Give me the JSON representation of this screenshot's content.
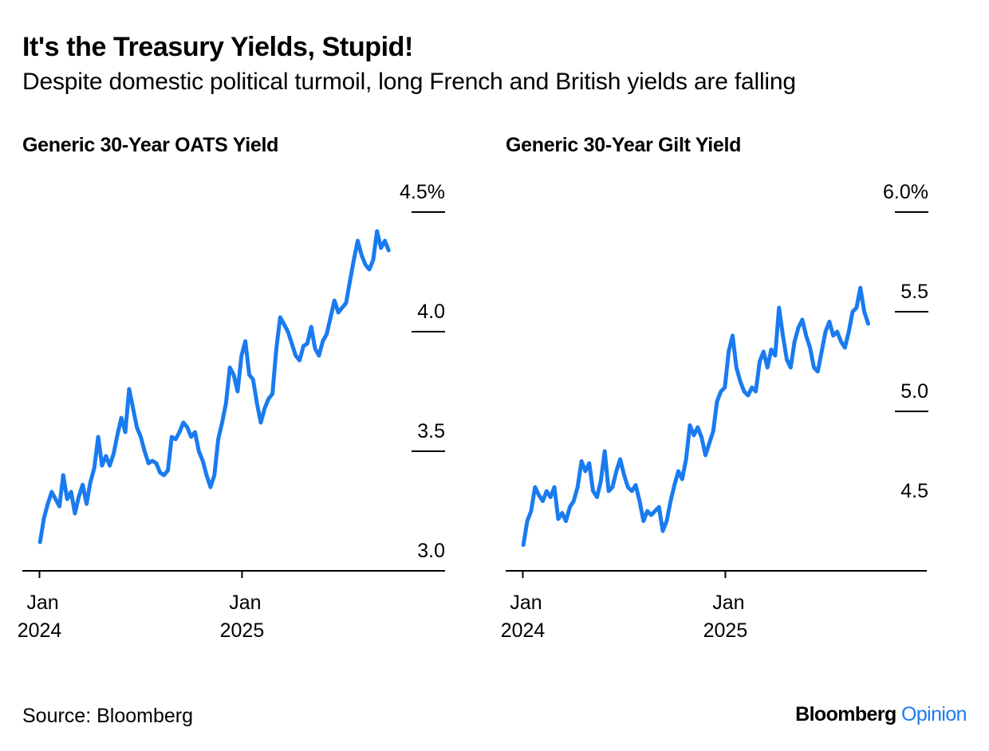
{
  "header": {
    "title": "It's the Treasury Yields, Stupid!",
    "subtitle": "Despite domestic political turmoil, long French and British yields are falling"
  },
  "footer": {
    "source": "Source: Bloomberg",
    "brand_main": "Bloomberg",
    "brand_accent": "Opinion"
  },
  "colors": {
    "line": "#1a7bf0",
    "axis": "#000000",
    "brand_accent": "#1a7bf0"
  },
  "chart_data": [
    {
      "type": "line",
      "title": "Generic 30-Year OATS Yield",
      "xlabel": "",
      "ylabel": "",
      "ylim": [
        3.0,
        4.5
      ],
      "yticks": [
        {
          "value": 3.0,
          "label": "3.0"
        },
        {
          "value": 3.5,
          "label": "3.5"
        },
        {
          "value": 4.0,
          "label": "4.0"
        },
        {
          "value": 4.5,
          "label": "4.5%"
        }
      ],
      "xlim": [
        "2023-12-01",
        "2025-12-31"
      ],
      "xticks": [
        {
          "date": "2024-01-01",
          "line1": "Jan",
          "line2": "2024"
        },
        {
          "date": "2025-01-01",
          "line1": "Jan",
          "line2": "2025"
        }
      ],
      "grid": false,
      "series": [
        {
          "points": [
            [
              "2024-01-02",
              3.12
            ],
            [
              "2024-01-09",
              3.22
            ],
            [
              "2024-01-16",
              3.28
            ],
            [
              "2024-01-23",
              3.33
            ],
            [
              "2024-01-30",
              3.3
            ],
            [
              "2024-02-06",
              3.27
            ],
            [
              "2024-02-13",
              3.4
            ],
            [
              "2024-02-20",
              3.3
            ],
            [
              "2024-02-27",
              3.33
            ],
            [
              "2024-03-05",
              3.24
            ],
            [
              "2024-03-12",
              3.31
            ],
            [
              "2024-03-19",
              3.36
            ],
            [
              "2024-03-26",
              3.28
            ],
            [
              "2024-04-02",
              3.37
            ],
            [
              "2024-04-09",
              3.43
            ],
            [
              "2024-04-16",
              3.56
            ],
            [
              "2024-04-23",
              3.44
            ],
            [
              "2024-04-30",
              3.48
            ],
            [
              "2024-05-07",
              3.44
            ],
            [
              "2024-05-14",
              3.49
            ],
            [
              "2024-05-21",
              3.57
            ],
            [
              "2024-05-28",
              3.64
            ],
            [
              "2024-06-04",
              3.58
            ],
            [
              "2024-06-11",
              3.76
            ],
            [
              "2024-06-18",
              3.68
            ],
            [
              "2024-06-25",
              3.6
            ],
            [
              "2024-07-02",
              3.56
            ],
            [
              "2024-07-09",
              3.5
            ],
            [
              "2024-07-16",
              3.45
            ],
            [
              "2024-07-23",
              3.46
            ],
            [
              "2024-07-30",
              3.45
            ],
            [
              "2024-08-06",
              3.41
            ],
            [
              "2024-08-13",
              3.4
            ],
            [
              "2024-08-20",
              3.42
            ],
            [
              "2024-08-27",
              3.56
            ],
            [
              "2024-09-03",
              3.55
            ],
            [
              "2024-09-10",
              3.58
            ],
            [
              "2024-09-17",
              3.62
            ],
            [
              "2024-09-24",
              3.6
            ],
            [
              "2024-10-01",
              3.56
            ],
            [
              "2024-10-08",
              3.58
            ],
            [
              "2024-10-15",
              3.5
            ],
            [
              "2024-10-22",
              3.46
            ],
            [
              "2024-10-29",
              3.4
            ],
            [
              "2024-11-05",
              3.35
            ],
            [
              "2024-11-12",
              3.4
            ],
            [
              "2024-11-19",
              3.55
            ],
            [
              "2024-11-26",
              3.62
            ],
            [
              "2024-12-03",
              3.7
            ],
            [
              "2024-12-10",
              3.85
            ],
            [
              "2024-12-17",
              3.82
            ],
            [
              "2024-12-24",
              3.75
            ],
            [
              "2024-12-31",
              3.9
            ],
            [
              "2025-01-07",
              3.96
            ],
            [
              "2025-01-14",
              3.82
            ],
            [
              "2025-01-21",
              3.8
            ],
            [
              "2025-01-28",
              3.7
            ],
            [
              "2025-02-04",
              3.62
            ],
            [
              "2025-02-11",
              3.68
            ],
            [
              "2025-02-18",
              3.72
            ],
            [
              "2025-02-25",
              3.74
            ],
            [
              "2025-03-04",
              3.93
            ],
            [
              "2025-03-11",
              4.06
            ],
            [
              "2025-03-18",
              4.03
            ],
            [
              "2025-03-25",
              4.0
            ],
            [
              "2025-04-01",
              3.95
            ],
            [
              "2025-04-08",
              3.9
            ],
            [
              "2025-04-15",
              3.88
            ],
            [
              "2025-04-22",
              3.94
            ],
            [
              "2025-04-29",
              3.95
            ],
            [
              "2025-05-06",
              4.02
            ],
            [
              "2025-05-13",
              3.93
            ],
            [
              "2025-05-20",
              3.9
            ],
            [
              "2025-05-27",
              3.96
            ],
            [
              "2025-06-03",
              3.99
            ],
            [
              "2025-06-10",
              4.06
            ],
            [
              "2025-06-17",
              4.13
            ],
            [
              "2025-06-24",
              4.08
            ],
            [
              "2025-07-01",
              4.1
            ],
            [
              "2025-07-08",
              4.12
            ],
            [
              "2025-07-15",
              4.21
            ],
            [
              "2025-07-22",
              4.3
            ],
            [
              "2025-07-29",
              4.38
            ],
            [
              "2025-08-05",
              4.32
            ],
            [
              "2025-08-12",
              4.28
            ],
            [
              "2025-08-19",
              4.26
            ],
            [
              "2025-08-26",
              4.3
            ],
            [
              "2025-09-02",
              4.42
            ],
            [
              "2025-09-09",
              4.35
            ],
            [
              "2025-09-16",
              4.38
            ],
            [
              "2025-09-23",
              4.34
            ]
          ]
        }
      ]
    },
    {
      "type": "line",
      "title": "Generic 30-Year Gilt Yield",
      "xlabel": "",
      "ylabel": "",
      "ylim": [
        4.25,
        6.0
      ],
      "yticks": [
        {
          "value": 4.5,
          "label": "4.5"
        },
        {
          "value": 5.0,
          "label": "5.0"
        },
        {
          "value": 5.5,
          "label": "5.5"
        },
        {
          "value": 6.0,
          "label": "6.0%"
        }
      ],
      "xlim": [
        "2023-12-01",
        "2025-12-31"
      ],
      "xticks": [
        {
          "date": "2024-01-01",
          "line1": "Jan",
          "line2": "2024"
        },
        {
          "date": "2025-01-01",
          "line1": "Jan",
          "line2": "2025"
        }
      ],
      "grid": false,
      "series": [
        {
          "points": [
            [
              "2024-01-02",
              4.33
            ],
            [
              "2024-01-09",
              4.45
            ],
            [
              "2024-01-16",
              4.5
            ],
            [
              "2024-01-23",
              4.62
            ],
            [
              "2024-01-30",
              4.58
            ],
            [
              "2024-02-06",
              4.55
            ],
            [
              "2024-02-13",
              4.6
            ],
            [
              "2024-02-20",
              4.57
            ],
            [
              "2024-02-27",
              4.62
            ],
            [
              "2024-03-05",
              4.46
            ],
            [
              "2024-03-12",
              4.49
            ],
            [
              "2024-03-19",
              4.45
            ],
            [
              "2024-03-26",
              4.52
            ],
            [
              "2024-04-02",
              4.55
            ],
            [
              "2024-04-09",
              4.62
            ],
            [
              "2024-04-16",
              4.75
            ],
            [
              "2024-04-23",
              4.7
            ],
            [
              "2024-04-30",
              4.74
            ],
            [
              "2024-05-07",
              4.6
            ],
            [
              "2024-05-14",
              4.57
            ],
            [
              "2024-05-21",
              4.65
            ],
            [
              "2024-05-28",
              4.8
            ],
            [
              "2024-06-04",
              4.6
            ],
            [
              "2024-06-11",
              4.62
            ],
            [
              "2024-06-18",
              4.7
            ],
            [
              "2024-06-25",
              4.76
            ],
            [
              "2024-07-02",
              4.68
            ],
            [
              "2024-07-09",
              4.62
            ],
            [
              "2024-07-16",
              4.6
            ],
            [
              "2024-07-23",
              4.63
            ],
            [
              "2024-07-30",
              4.55
            ],
            [
              "2024-08-06",
              4.45
            ],
            [
              "2024-08-13",
              4.5
            ],
            [
              "2024-08-20",
              4.48
            ],
            [
              "2024-08-27",
              4.5
            ],
            [
              "2024-09-03",
              4.52
            ],
            [
              "2024-09-10",
              4.4
            ],
            [
              "2024-09-17",
              4.45
            ],
            [
              "2024-09-24",
              4.55
            ],
            [
              "2024-10-01",
              4.63
            ],
            [
              "2024-10-08",
              4.7
            ],
            [
              "2024-10-15",
              4.66
            ],
            [
              "2024-10-22",
              4.76
            ],
            [
              "2024-10-29",
              4.93
            ],
            [
              "2024-11-05",
              4.88
            ],
            [
              "2024-11-12",
              4.92
            ],
            [
              "2024-11-19",
              4.87
            ],
            [
              "2024-11-26",
              4.78
            ],
            [
              "2024-12-03",
              4.84
            ],
            [
              "2024-12-10",
              4.9
            ],
            [
              "2024-12-17",
              5.05
            ],
            [
              "2024-12-24",
              5.1
            ],
            [
              "2024-12-31",
              5.12
            ],
            [
              "2025-01-07",
              5.3
            ],
            [
              "2025-01-14",
              5.38
            ],
            [
              "2025-01-21",
              5.22
            ],
            [
              "2025-01-28",
              5.15
            ],
            [
              "2025-02-04",
              5.1
            ],
            [
              "2025-02-11",
              5.08
            ],
            [
              "2025-02-18",
              5.12
            ],
            [
              "2025-02-25",
              5.1
            ],
            [
              "2025-03-04",
              5.25
            ],
            [
              "2025-03-11",
              5.3
            ],
            [
              "2025-03-18",
              5.22
            ],
            [
              "2025-03-25",
              5.31
            ],
            [
              "2025-04-01",
              5.28
            ],
            [
              "2025-04-08",
              5.52
            ],
            [
              "2025-04-15",
              5.38
            ],
            [
              "2025-04-22",
              5.26
            ],
            [
              "2025-04-29",
              5.22
            ],
            [
              "2025-05-06",
              5.35
            ],
            [
              "2025-05-13",
              5.42
            ],
            [
              "2025-05-20",
              5.46
            ],
            [
              "2025-05-27",
              5.38
            ],
            [
              "2025-06-03",
              5.32
            ],
            [
              "2025-06-10",
              5.22
            ],
            [
              "2025-06-17",
              5.2
            ],
            [
              "2025-06-24",
              5.3
            ],
            [
              "2025-07-01",
              5.4
            ],
            [
              "2025-07-08",
              5.45
            ],
            [
              "2025-07-15",
              5.38
            ],
            [
              "2025-07-22",
              5.4
            ],
            [
              "2025-07-29",
              5.35
            ],
            [
              "2025-08-05",
              5.32
            ],
            [
              "2025-08-12",
              5.4
            ],
            [
              "2025-08-19",
              5.5
            ],
            [
              "2025-08-26",
              5.52
            ],
            [
              "2025-09-02",
              5.62
            ],
            [
              "2025-09-09",
              5.5
            ],
            [
              "2025-09-16",
              5.44
            ]
          ]
        }
      ]
    }
  ]
}
